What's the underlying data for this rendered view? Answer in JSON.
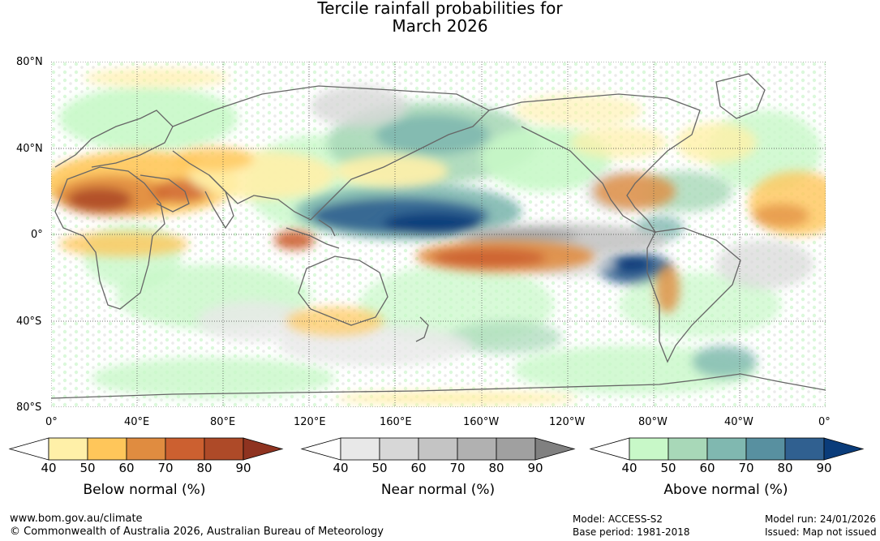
{
  "title_line1": "Tercile rainfall probabilities for",
  "title_line2": "March 2026",
  "lat_labels": [
    "80°N",
    "40°N",
    "0°",
    "40°S",
    "80°S"
  ],
  "lon_labels": [
    "0°",
    "40°E",
    "80°E",
    "120°E",
    "160°E",
    "160°W",
    "120°W",
    "80°W",
    "40°W",
    "0°"
  ],
  "colorbars": [
    {
      "title": "Below normal (%)",
      "ticks": [
        "40",
        "50",
        "60",
        "70",
        "80",
        "90"
      ],
      "colors": [
        "#fff0a8",
        "#ffc65a",
        "#e08c40",
        "#cc6030",
        "#ae4a28",
        "#8f3320"
      ]
    },
    {
      "title": "Near normal (%)",
      "ticks": [
        "40",
        "50",
        "60",
        "70",
        "80",
        "90"
      ],
      "colors": [
        "#e8e8e8",
        "#d7d7d7",
        "#c4c4c4",
        "#b1b1b1",
        "#a0a0a0",
        "#808080"
      ]
    },
    {
      "title": "Above normal (%)",
      "ticks": [
        "40",
        "50",
        "60",
        "70",
        "80",
        "90"
      ],
      "colors": [
        "#c8f8c8",
        "#a8d8b8",
        "#80b8b0",
        "#5890a0",
        "#306090",
        "#0a3c7a"
      ]
    }
  ],
  "footer": {
    "url": "www.bom.gov.au/climate",
    "copyright": "© Commonwealth of Australia 2026, Australian Bureau of Meteorology",
    "model": "Model: ACCESS-S2",
    "base_period": "Base period: 1981-2018",
    "model_run": "Model run: 24/01/2026",
    "issued": "Issued: Map not issued"
  }
}
